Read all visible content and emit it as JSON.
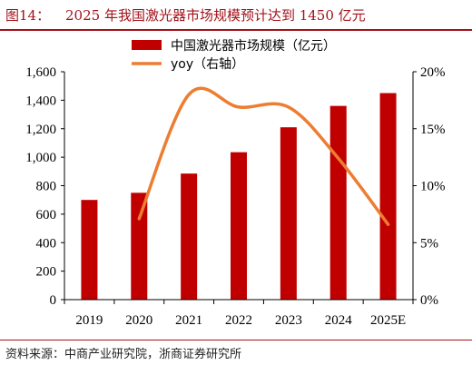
{
  "figure": {
    "label": "图14：",
    "title": "2025 年我国激光器市场规模预计达到 1450 亿元",
    "source": "资料来源：中商产业研究院，浙商证券研究所"
  },
  "colors": {
    "bar": "#c00000",
    "line": "#ed7d31",
    "title": "#a3121a",
    "axis": "#000000"
  },
  "chart_data": {
    "type": "bar",
    "categories": [
      "2019",
      "2020",
      "2021",
      "2022",
      "2023",
      "2024",
      "2025E"
    ],
    "series": [
      {
        "name": "中国激光器市场规模（亿元）",
        "type": "bar",
        "axis": "left",
        "values": [
          700,
          750,
          885,
          1035,
          1210,
          1360,
          1450
        ]
      },
      {
        "name": "yoy（右轴）",
        "type": "line",
        "smooth": true,
        "axis": "right",
        "values": [
          null,
          7.1,
          18.0,
          16.9,
          16.9,
          12.4,
          6.6
        ]
      }
    ],
    "left_axis": {
      "ylim": [
        0,
        1600
      ],
      "ticks": [
        0,
        200,
        400,
        600,
        800,
        1000,
        1200,
        1400,
        1600
      ],
      "tick_labels": [
        "0",
        "200",
        "400",
        "600",
        "800",
        "1,000",
        "1,200",
        "1,400",
        "1,600"
      ]
    },
    "right_axis": {
      "ylim": [
        0,
        20
      ],
      "ticks": [
        0,
        5,
        10,
        15,
        20
      ],
      "tick_labels": [
        "0%",
        "5%",
        "10%",
        "15%",
        "20%"
      ]
    },
    "legend_position": "top-center",
    "grid": false
  }
}
